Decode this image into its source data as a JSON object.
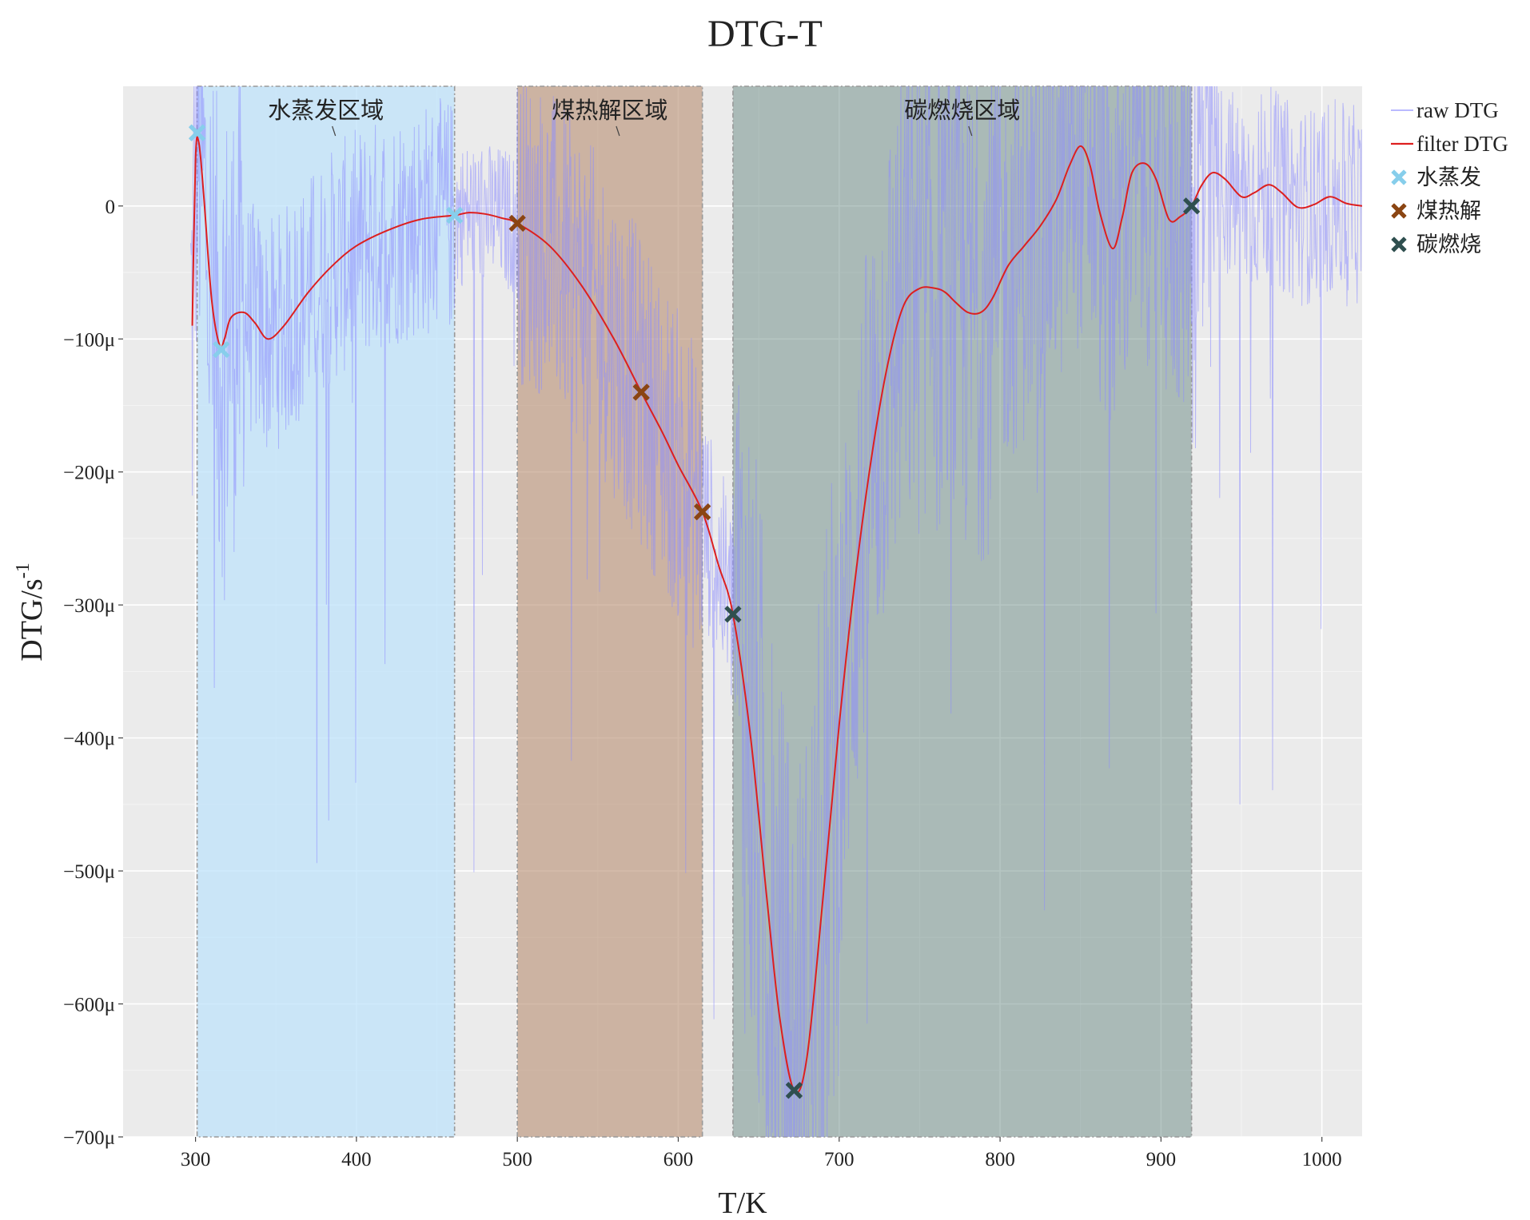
{
  "chart_data": {
    "type": "line",
    "title": "DTG-T",
    "xlabel": "T/K",
    "ylabel": "DTG/s",
    "ylabel_superscript": "-1",
    "xlim": [
      255,
      1025
    ],
    "ylim": [
      -700,
      90
    ],
    "xticks": [
      300,
      400,
      500,
      600,
      700,
      800,
      900,
      1000
    ],
    "yticks": [
      0,
      -100,
      -200,
      -300,
      -400,
      -500,
      -600,
      -700
    ],
    "ytick_labels": [
      "0",
      "−100μ",
      "−200μ",
      "−300μ",
      "−400μ",
      "−500μ",
      "−600μ",
      "−700μ"
    ],
    "y_unit": "μ (1e-6 s⁻¹)",
    "grid": true,
    "legend_position": "right",
    "colors": {
      "background": "#ebebeb",
      "raw": "#8c8cff",
      "filter": "#dd1f1f",
      "water": "#87ceeb",
      "pyrolysis": "#8b4513",
      "carbon": "#2f4f4f"
    },
    "regions": [
      {
        "label": "水蒸发区域",
        "x_start": 301,
        "x_end": 461,
        "color": "#bfe3fb",
        "opacity": 0.75
      },
      {
        "label": "煤热解区域",
        "x_start": 500,
        "x_end": 615,
        "color": "#b88d72",
        "opacity": 0.6
      },
      {
        "label": "碳燃烧区域",
        "x_start": 634,
        "x_end": 919,
        "color": "#5b7f78",
        "opacity": 0.45
      }
    ],
    "series": [
      {
        "name": "raw DTG",
        "kind": "noisy-line",
        "color": "#8c8cff",
        "x_range": [
          297,
          1025
        ],
        "approx_baseline_note": "noisy trace oscillating around the filtered curve"
      },
      {
        "name": "filter DTG",
        "kind": "line",
        "color": "#dd1f1f",
        "x": [
          298,
          300,
          302,
          305,
          310,
          315,
          318,
          322,
          330,
          337,
          345,
          355,
          370,
          385,
          400,
          420,
          440,
          461,
          470,
          480,
          490,
          500,
          520,
          540,
          560,
          577,
          590,
          600,
          615,
          625,
          634,
          645,
          655,
          663,
          672,
          680,
          690,
          700,
          710,
          720,
          730,
          740,
          750,
          760,
          766,
          772,
          780,
          788,
          795,
          805,
          815,
          825,
          835,
          843,
          850,
          856,
          862,
          870,
          876,
          882,
          890,
          897,
          905,
          912,
          919,
          925,
          932,
          940,
          950,
          958,
          967,
          975,
          985,
          995,
          1005,
          1015,
          1025
        ],
        "y": [
          -90,
          35,
          48,
          10,
          -70,
          -105,
          -100,
          -84,
          -80,
          -88,
          -100,
          -90,
          -65,
          -45,
          -30,
          -18,
          -10,
          -7,
          -5,
          -6,
          -9,
          -13,
          -30,
          -60,
          -100,
          -140,
          -170,
          -195,
          -230,
          -270,
          -307,
          -400,
          -520,
          -610,
          -665,
          -640,
          -520,
          -390,
          -280,
          -190,
          -120,
          -75,
          -62,
          -62,
          -65,
          -72,
          -80,
          -80,
          -70,
          -45,
          -30,
          -15,
          5,
          30,
          45,
          30,
          -5,
          -32,
          -8,
          25,
          32,
          20,
          -10,
          -8,
          0,
          15,
          25,
          20,
          7,
          10,
          16,
          10,
          -1,
          1,
          7,
          2,
          0
        ]
      },
      {
        "name": "水蒸发",
        "kind": "markers",
        "color": "#87ceeb",
        "x": [
          301,
          316,
          461
        ],
        "y": [
          55,
          -108,
          -7
        ]
      },
      {
        "name": "煤热解",
        "kind": "markers",
        "color": "#8b4513",
        "x": [
          500,
          577,
          615
        ],
        "y": [
          -13,
          -140,
          -230
        ]
      },
      {
        "name": "碳燃烧",
        "kind": "markers",
        "color": "#2f4f4f",
        "x": [
          634,
          672,
          919
        ],
        "y": [
          -307,
          -665,
          0
        ]
      }
    ]
  }
}
